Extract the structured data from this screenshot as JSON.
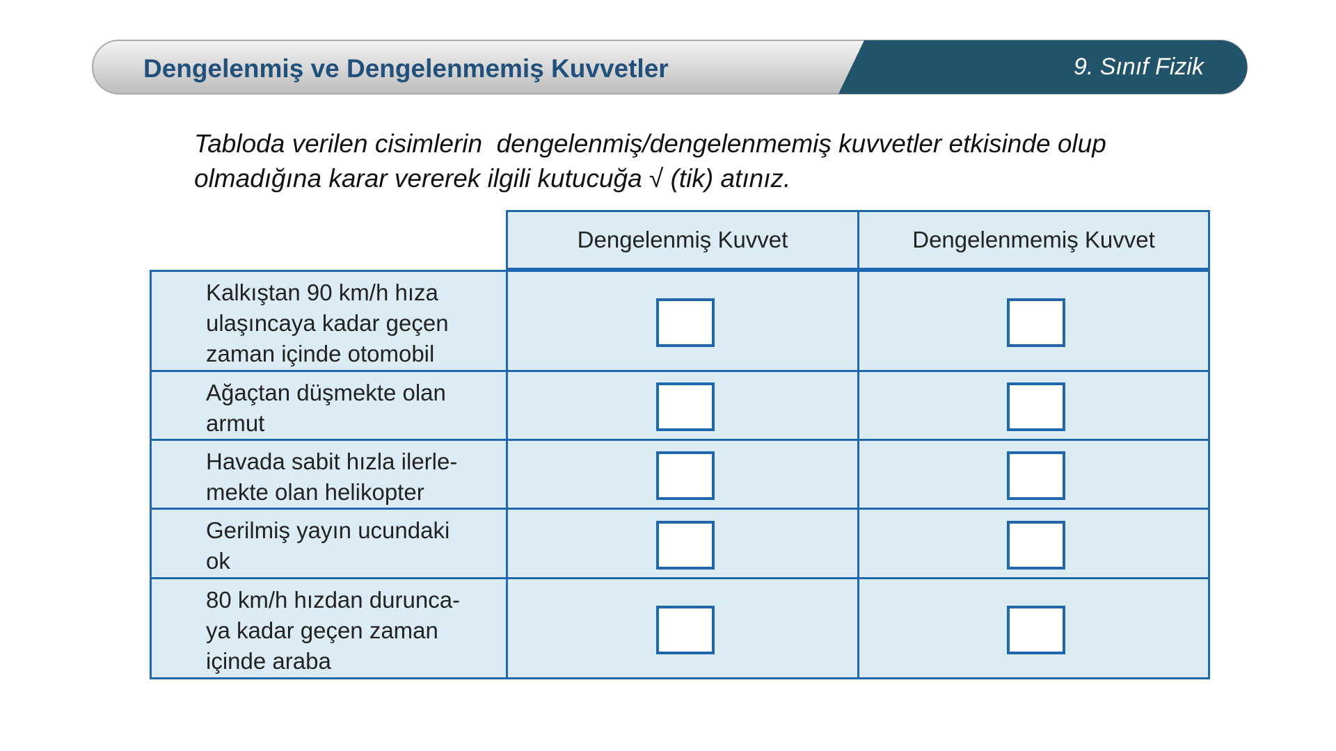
{
  "header": {
    "title": "Dengelenmiş ve Dengelenmemiş Kuvvetler",
    "course": "9. Sınıf Fizik"
  },
  "instruction": [
    "Tabloda verilen cisimlerin  dengelenmiş/dengelenmemiş kuvvetler etkisinde olup",
    "olmadığına karar vererek ilgili kutucuğa √ (tik) atınız."
  ],
  "table": {
    "columns": [
      "Dengelenmiş Kuvvet",
      "Dengelenmemiş Kuvvet"
    ],
    "rows": [
      [
        "Kalkıştan 90 km/h hıza",
        "ulaşıncaya kadar geçen",
        "zaman içinde otomobil"
      ],
      [
        "Ağaçtan düşmekte olan",
        "armut"
      ],
      [
        "Havada sabit hızla ilerle-",
        "mekte olan helikopter"
      ],
      [
        "Gerilmiş yayın ucundaki",
        "ok"
      ],
      [
        "80 km/h hızdan durunca-",
        "ya kadar geçen zaman",
        "içinde araba"
      ]
    ]
  }
}
